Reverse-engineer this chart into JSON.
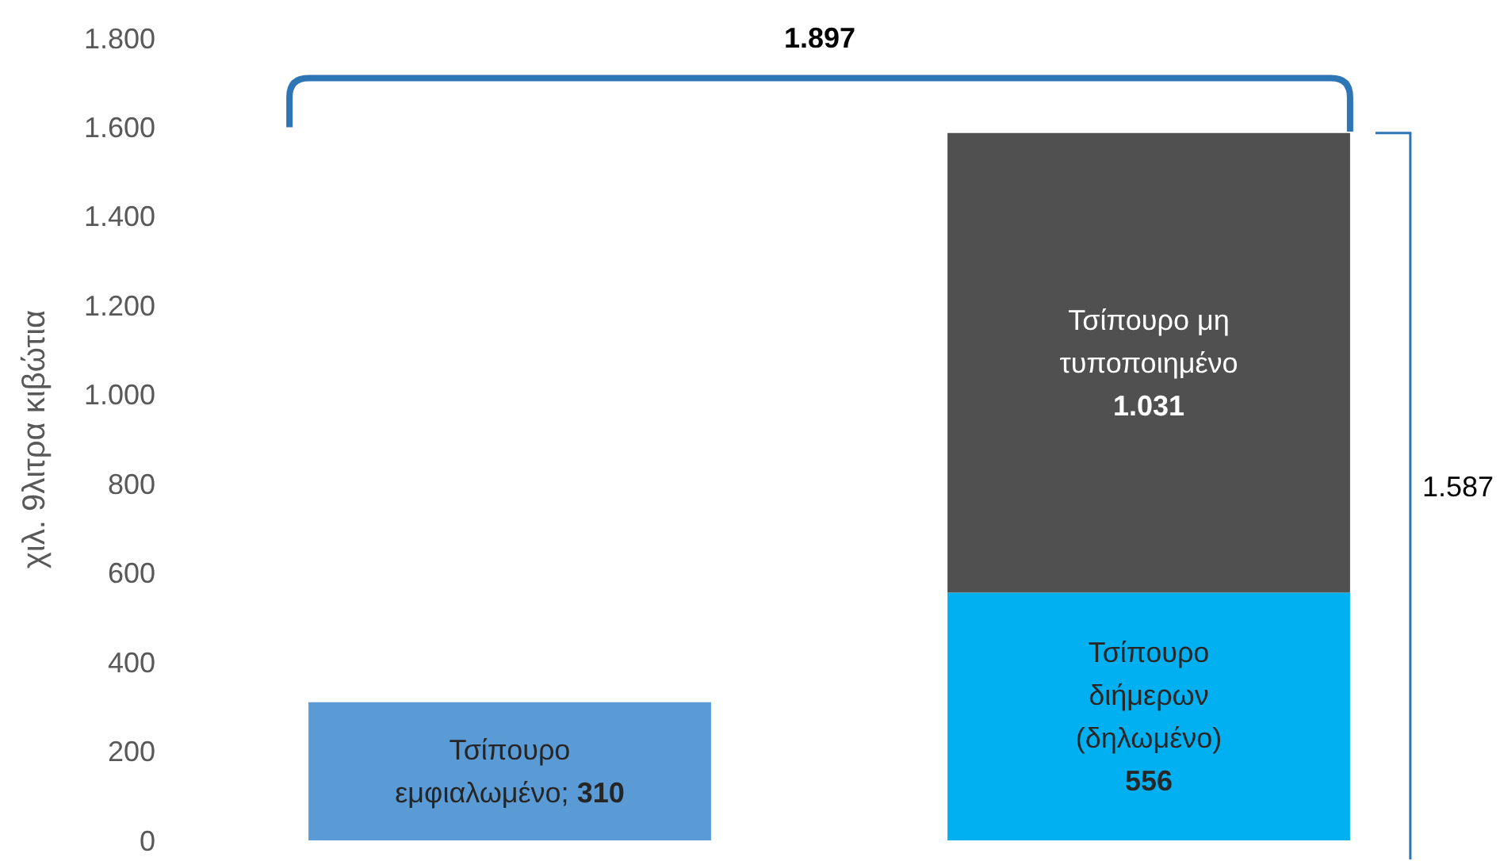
{
  "chart_data": {
    "type": "bar",
    "stacked": true,
    "ylabel": "χιλ. 9λιτρα κιβώτια",
    "categories": [
      null,
      null
    ],
    "ylim": [
      0,
      1800
    ],
    "yticks": [
      {
        "value": 0,
        "label": "0"
      },
      {
        "value": 200,
        "label": "200"
      },
      {
        "value": 400,
        "label": "400"
      },
      {
        "value": 600,
        "label": "600"
      },
      {
        "value": 800,
        "label": "800"
      },
      {
        "value": 1000,
        "label": "1.000"
      },
      {
        "value": 1200,
        "label": "1.200"
      },
      {
        "value": 1400,
        "label": "1.400"
      },
      {
        "value": 1600,
        "label": "1.600"
      },
      {
        "value": 1800,
        "label": "1.800"
      }
    ],
    "series": [
      {
        "name": "Τσίπουρο\nεμφιαλωμένο;",
        "color": "#5b9bd5",
        "values": [
          310,
          null
        ],
        "value_labels": [
          "310",
          null
        ]
      },
      {
        "name": "Τσίπουρο\nδιήμερων\n(δηλωμένο)",
        "color": "#00b0f0",
        "values": [
          null,
          556
        ],
        "value_labels": [
          null,
          "556"
        ]
      },
      {
        "name": "Τσίπουρο μη\nτυποποιημένο",
        "color": "#505050",
        "values": [
          null,
          1031
        ],
        "value_labels": [
          null,
          "1.031"
        ]
      }
    ],
    "annotations": [
      "1.897",
      "1.587"
    ],
    "grid": false
  }
}
